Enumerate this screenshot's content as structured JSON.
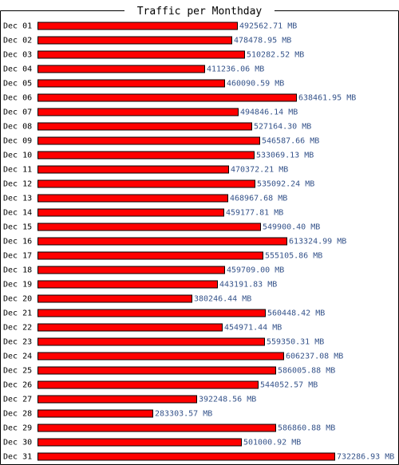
{
  "chart_data": {
    "type": "bar",
    "orientation": "horizontal",
    "title": "Traffic per Monthday",
    "unit": "MB",
    "categories": [
      "Dec 01",
      "Dec 02",
      "Dec 03",
      "Dec 04",
      "Dec 05",
      "Dec 06",
      "Dec 07",
      "Dec 08",
      "Dec 09",
      "Dec 10",
      "Dec 11",
      "Dec 12",
      "Dec 13",
      "Dec 14",
      "Dec 15",
      "Dec 16",
      "Dec 17",
      "Dec 18",
      "Dec 19",
      "Dec 20",
      "Dec 21",
      "Dec 22",
      "Dec 23",
      "Dec 24",
      "Dec 25",
      "Dec 26",
      "Dec 27",
      "Dec 28",
      "Dec 29",
      "Dec 30",
      "Dec 31"
    ],
    "values": [
      492562.71,
      478478.95,
      510282.52,
      411236.06,
      460090.59,
      638461.95,
      494846.14,
      527164.3,
      546587.66,
      533069.13,
      470372.21,
      535092.24,
      468967.68,
      459177.81,
      549900.4,
      613324.99,
      555105.86,
      459709.0,
      443191.83,
      380246.44,
      560448.42,
      454971.44,
      559350.31,
      606237.08,
      586005.88,
      544052.57,
      392248.56,
      283303.57,
      586860.88,
      501000.92,
      732286.93
    ],
    "value_labels": [
      "492562.71 MB",
      "478478.95 MB",
      "510282.52 MB",
      "411236.06 MB",
      "460090.59 MB",
      "638461.95 MB",
      "494846.14 MB",
      "527164.30 MB",
      "546587.66 MB",
      "533069.13 MB",
      "470372.21 MB",
      "535092.24 MB",
      "468967.68 MB",
      "459177.81 MB",
      "549900.40 MB",
      "613324.99 MB",
      "555105.86 MB",
      "459709.00 MB",
      "443191.83 MB",
      "380246.44 MB",
      "560448.42 MB",
      "454971.44 MB",
      "559350.31 MB",
      "606237.08 MB",
      "586005.88 MB",
      "544052.57 MB",
      "392248.56 MB",
      "283303.57 MB",
      "586860.88 MB",
      "501000.92 MB",
      "732286.93 MB"
    ],
    "xlim": [
      0,
      732286.93
    ],
    "grid": false,
    "legend": "none",
    "bar_color": "#ff0000",
    "bar_border_color": "#000000",
    "value_label_color": "#35538a"
  }
}
